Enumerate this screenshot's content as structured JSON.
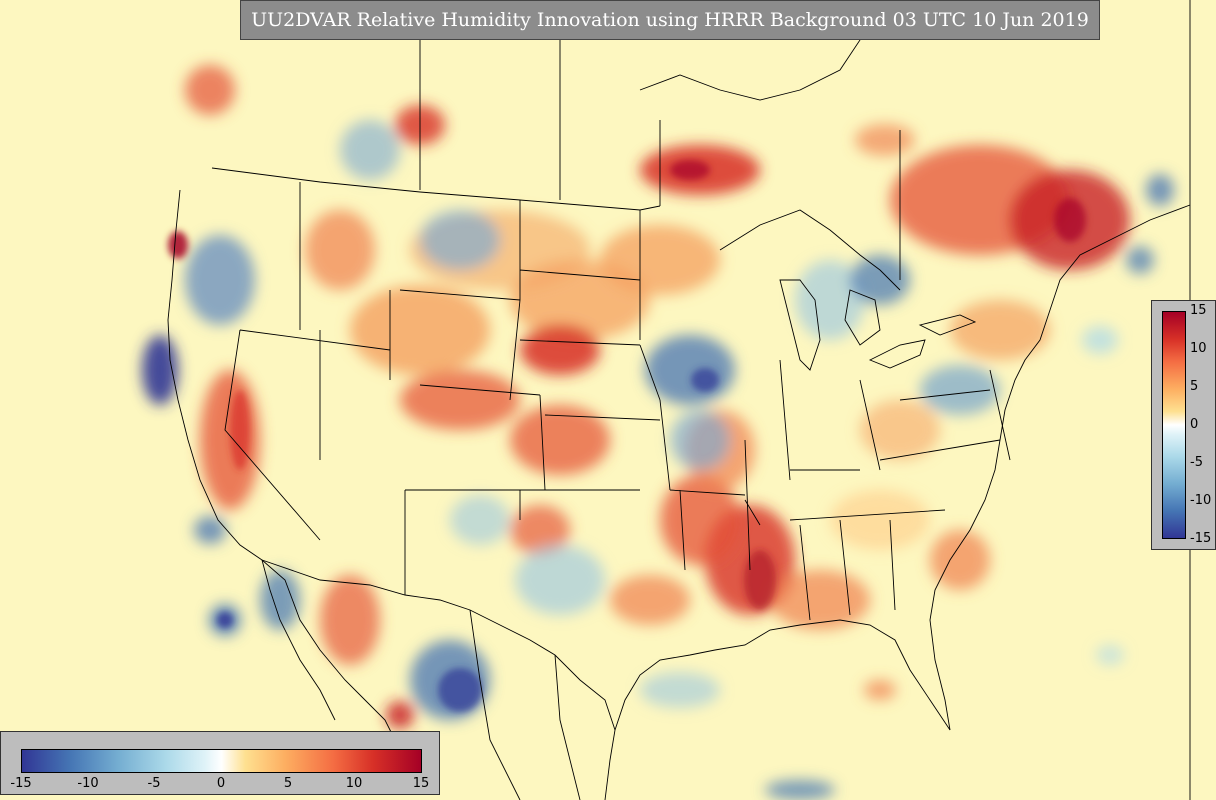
{
  "title": "UU2DVAR Relative Humidity Innovation using HRRR Background 03 UTC 10 Jun 2019",
  "colorbar": {
    "min": -15,
    "max": 15,
    "ticks": [
      "-15",
      "-10",
      "-5",
      "0",
      "5",
      "10",
      "15"
    ],
    "colors": [
      "#313695",
      "#4575b4",
      "#74add1",
      "#abd9e9",
      "#e0f3f8",
      "#ffffff",
      "#fee090",
      "#fdae61",
      "#f46d43",
      "#d73027",
      "#a50026"
    ]
  },
  "map": {
    "background_color": "#fdf7c0",
    "boundary_color": "#000000"
  }
}
